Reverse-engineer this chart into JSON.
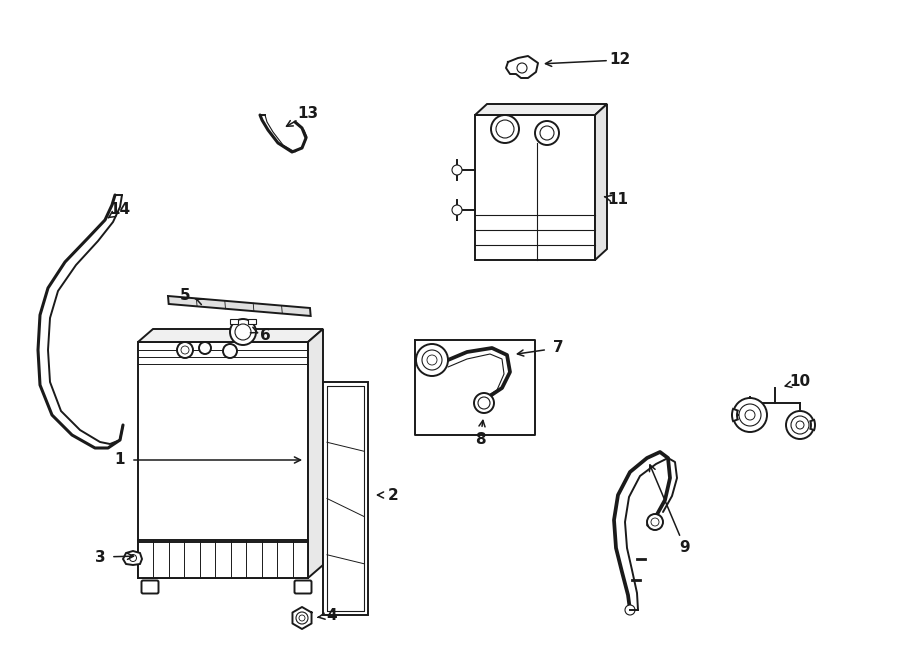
{
  "bg_color": "#ffffff",
  "line_color": "#1a1a1a",
  "lw": 1.4,
  "lw_thick": 2.2,
  "lw_thin": 0.8
}
